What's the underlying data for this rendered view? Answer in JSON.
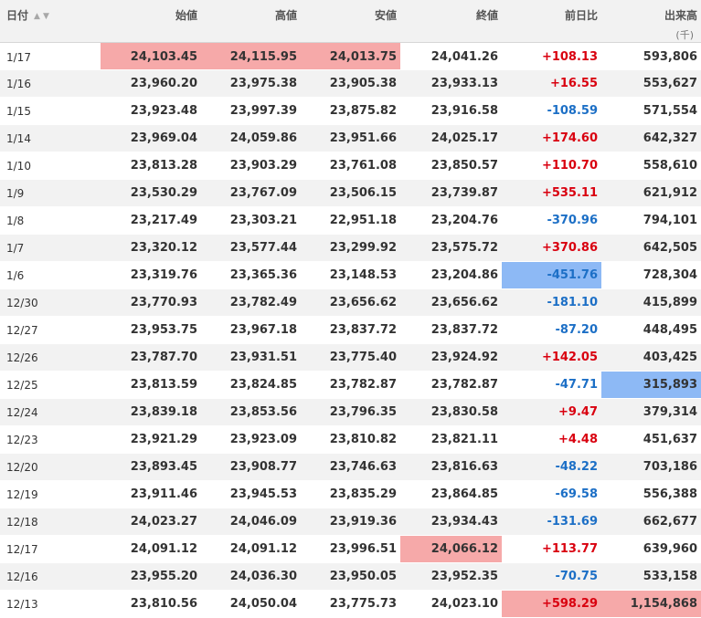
{
  "headers": {
    "date": "日付",
    "open": "始値",
    "high": "高値",
    "low": "安値",
    "close": "終値",
    "change": "前日比",
    "volume": "出来高",
    "volume_unit": "(千)"
  },
  "sort_icons": {
    "asc": "▲",
    "desc": "▼"
  },
  "colors": {
    "positive": "#d9000f",
    "negative": "#1c6fc6",
    "highlight_red": "#f6a9a9",
    "highlight_blue": "#8db9f5"
  },
  "rows": [
    {
      "date": "1/17",
      "open": "24,103.45",
      "high": "24,115.95",
      "low": "24,013.75",
      "close": "24,041.26",
      "change": "+108.13",
      "volume": "593,806",
      "hl": {
        "open": "red",
        "high": "red",
        "low": "red"
      }
    },
    {
      "date": "1/16",
      "open": "23,960.20",
      "high": "23,975.38",
      "low": "23,905.38",
      "close": "23,933.13",
      "change": "+16.55",
      "volume": "553,627",
      "hl": {}
    },
    {
      "date": "1/15",
      "open": "23,923.48",
      "high": "23,997.39",
      "low": "23,875.82",
      "close": "23,916.58",
      "change": "-108.59",
      "volume": "571,554",
      "hl": {}
    },
    {
      "date": "1/14",
      "open": "23,969.04",
      "high": "24,059.86",
      "low": "23,951.66",
      "close": "24,025.17",
      "change": "+174.60",
      "volume": "642,327",
      "hl": {}
    },
    {
      "date": "1/10",
      "open": "23,813.28",
      "high": "23,903.29",
      "low": "23,761.08",
      "close": "23,850.57",
      "change": "+110.70",
      "volume": "558,610",
      "hl": {}
    },
    {
      "date": "1/9",
      "open": "23,530.29",
      "high": "23,767.09",
      "low": "23,506.15",
      "close": "23,739.87",
      "change": "+535.11",
      "volume": "621,912",
      "hl": {}
    },
    {
      "date": "1/8",
      "open": "23,217.49",
      "high": "23,303.21",
      "low": "22,951.18",
      "close": "23,204.76",
      "change": "-370.96",
      "volume": "794,101",
      "hl": {}
    },
    {
      "date": "1/7",
      "open": "23,320.12",
      "high": "23,577.44",
      "low": "23,299.92",
      "close": "23,575.72",
      "change": "+370.86",
      "volume": "642,505",
      "hl": {}
    },
    {
      "date": "1/6",
      "open": "23,319.76",
      "high": "23,365.36",
      "low": "23,148.53",
      "close": "23,204.86",
      "change": "-451.76",
      "volume": "728,304",
      "hl": {
        "change": "blue"
      }
    },
    {
      "date": "12/30",
      "open": "23,770.93",
      "high": "23,782.49",
      "low": "23,656.62",
      "close": "23,656.62",
      "change": "-181.10",
      "volume": "415,899",
      "hl": {}
    },
    {
      "date": "12/27",
      "open": "23,953.75",
      "high": "23,967.18",
      "low": "23,837.72",
      "close": "23,837.72",
      "change": "-87.20",
      "volume": "448,495",
      "hl": {}
    },
    {
      "date": "12/26",
      "open": "23,787.70",
      "high": "23,931.51",
      "low": "23,775.40",
      "close": "23,924.92",
      "change": "+142.05",
      "volume": "403,425",
      "hl": {}
    },
    {
      "date": "12/25",
      "open": "23,813.59",
      "high": "23,824.85",
      "low": "23,782.87",
      "close": "23,782.87",
      "change": "-47.71",
      "volume": "315,893",
      "hl": {
        "volume": "blue"
      }
    },
    {
      "date": "12/24",
      "open": "23,839.18",
      "high": "23,853.56",
      "low": "23,796.35",
      "close": "23,830.58",
      "change": "+9.47",
      "volume": "379,314",
      "hl": {}
    },
    {
      "date": "12/23",
      "open": "23,921.29",
      "high": "23,923.09",
      "low": "23,810.82",
      "close": "23,821.11",
      "change": "+4.48",
      "volume": "451,637",
      "hl": {}
    },
    {
      "date": "12/20",
      "open": "23,893.45",
      "high": "23,908.77",
      "low": "23,746.63",
      "close": "23,816.63",
      "change": "-48.22",
      "volume": "703,186",
      "hl": {}
    },
    {
      "date": "12/19",
      "open": "23,911.46",
      "high": "23,945.53",
      "low": "23,835.29",
      "close": "23,864.85",
      "change": "-69.58",
      "volume": "556,388",
      "hl": {}
    },
    {
      "date": "12/18",
      "open": "24,023.27",
      "high": "24,046.09",
      "low": "23,919.36",
      "close": "23,934.43",
      "change": "-131.69",
      "volume": "662,677",
      "hl": {}
    },
    {
      "date": "12/17",
      "open": "24,091.12",
      "high": "24,091.12",
      "low": "23,996.51",
      "close": "24,066.12",
      "change": "+113.77",
      "volume": "639,960",
      "hl": {
        "close": "red"
      }
    },
    {
      "date": "12/16",
      "open": "23,955.20",
      "high": "24,036.30",
      "low": "23,950.05",
      "close": "23,952.35",
      "change": "-70.75",
      "volume": "533,158",
      "hl": {}
    },
    {
      "date": "12/13",
      "open": "23,810.56",
      "high": "24,050.04",
      "low": "23,775.73",
      "close": "24,023.10",
      "change": "+598.29",
      "volume": "1,154,868",
      "hl": {
        "change": "red",
        "volume": "red"
      }
    }
  ]
}
